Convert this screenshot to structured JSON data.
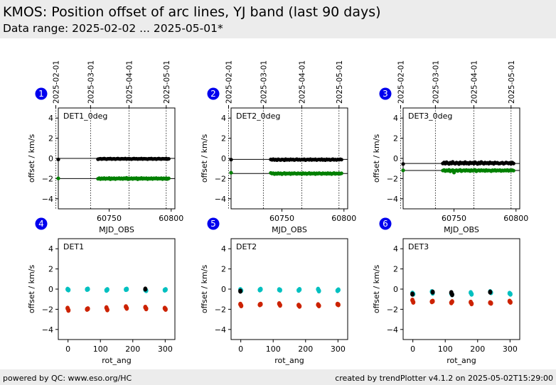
{
  "header": {
    "title": "KMOS: Position offset of arc lines, YJ band (last 90 days)",
    "subtitle": "Data range: 2025-02-02 ... 2025-05-01*"
  },
  "footer": {
    "left": "powered by QC: www.eso.org/HC",
    "right": "created by trendPlotter v4.1.2 on 2025-05-02T15:29:00"
  },
  "colors": {
    "series_black": "#000000",
    "series_green": "#008000",
    "series_cyan": "#00c0c0",
    "series_red": "#cc2200",
    "badge": "#0000ee"
  },
  "chart_data": [
    {
      "type": "scatter",
      "badge": "1",
      "label": "DET1_0deg",
      "xlabel": "MJD_OBS",
      "ylabel": "offset / km/s",
      "xlim": [
        60709,
        60803
      ],
      "ylim": [
        -5,
        5
      ],
      "xticks": [
        60750,
        60800
      ],
      "yticks": [
        4,
        2,
        0,
        -2,
        -4
      ],
      "date_ticks": [
        {
          "mjd": 60707,
          "label": "2025-02-01"
        },
        {
          "mjd": 60735,
          "label": "2025-03-01"
        },
        {
          "mjd": 60766,
          "label": "2025-04-01"
        },
        {
          "mjd": 60796,
          "label": "2025-05-01"
        }
      ],
      "ref_lines": [
        0,
        -2
      ],
      "series": [
        {
          "color": "#000000",
          "x_start": 60709,
          "x_step": 1,
          "values": [
            -0.1,
            null,
            null,
            null,
            null,
            null,
            null,
            null,
            null,
            null,
            null,
            null,
            null,
            null,
            null,
            null,
            null,
            null,
            null,
            null,
            null,
            null,
            null,
            null,
            null,
            null,
            null,
            null,
            null,
            null,
            null,
            null,
            -0.08,
            -0.05,
            -0.03,
            -0.06,
            -0.04,
            -0.02,
            -0.05,
            -0.07,
            -0.03,
            -0.04,
            -0.02,
            -0.06,
            -0.05,
            -0.03,
            -0.07,
            -0.04,
            -0.02,
            -0.05,
            -0.06,
            -0.03,
            -0.04,
            -0.05,
            -0.02,
            -0.06,
            -0.04,
            -0.03,
            -0.05,
            -0.07,
            -0.04,
            -0.02,
            -0.05,
            -0.03,
            -0.06,
            -0.04,
            -0.05,
            -0.02,
            -0.06,
            -0.03,
            -0.04,
            -0.05,
            -0.07,
            -0.03,
            -0.04,
            -0.02,
            -0.06,
            -0.05,
            -0.03,
            -0.07,
            -0.04,
            -0.02,
            -0.05,
            -0.06,
            -0.03,
            -0.04,
            -0.05,
            -0.02,
            -0.06,
            -0.04
          ]
        },
        {
          "color": "#008000",
          "x_start": 60709,
          "x_step": 1,
          "values": [
            -1.98,
            null,
            null,
            null,
            null,
            null,
            null,
            null,
            null,
            null,
            null,
            null,
            null,
            null,
            null,
            null,
            null,
            null,
            null,
            null,
            null,
            null,
            null,
            null,
            null,
            null,
            null,
            null,
            null,
            null,
            null,
            null,
            -2.02,
            -1.96,
            -2.05,
            -1.97,
            -2.03,
            -1.95,
            -2.04,
            -1.98,
            -2.01,
            -1.94,
            -2.06,
            -1.97,
            -2.02,
            -1.96,
            -2.05,
            -1.98,
            -2.0,
            -1.95,
            -2.03,
            -1.97,
            -2.04,
            -1.96,
            -2.01,
            -1.93,
            -2.05,
            -1.98,
            -2.02,
            -1.96,
            -2.04,
            -1.97,
            -2.0,
            -1.95,
            -2.06,
            -1.98,
            -2.02,
            -1.94,
            -2.03,
            -1.97,
            -2.01,
            -1.96,
            -2.05,
            -1.98,
            -2.02,
            -1.96,
            -2.04,
            -1.97,
            -2.0,
            -1.95,
            -2.03,
            -1.98,
            -2.01,
            -1.96,
            -2.05,
            -1.97,
            -2.02,
            -1.96,
            -2.04,
            -1.98
          ]
        }
      ]
    },
    {
      "type": "scatter",
      "badge": "2",
      "label": "DET2_0deg",
      "xlabel": "MJD_OBS",
      "ylabel": "offset / km/s",
      "xlim": [
        60709,
        60803
      ],
      "ylim": [
        -5,
        5
      ],
      "xticks": [
        60750,
        60800
      ],
      "yticks": [
        4,
        2,
        0,
        -2,
        -4
      ],
      "date_ticks": [
        {
          "mjd": 60707,
          "label": "2025-02-01"
        },
        {
          "mjd": 60735,
          "label": "2025-03-01"
        },
        {
          "mjd": 60766,
          "label": "2025-04-01"
        },
        {
          "mjd": 60796,
          "label": "2025-05-01"
        }
      ],
      "ref_lines": [
        -0.1,
        -1.5
      ],
      "series": [
        {
          "color": "#000000",
          "x_start": 60709,
          "x_step": 1,
          "values": [
            -0.12,
            null,
            null,
            null,
            null,
            null,
            null,
            null,
            null,
            null,
            null,
            null,
            null,
            null,
            null,
            null,
            null,
            null,
            null,
            null,
            null,
            null,
            null,
            null,
            null,
            null,
            null,
            null,
            null,
            null,
            null,
            null,
            -0.1,
            -0.14,
            -0.08,
            -0.15,
            -0.11,
            -0.17,
            -0.09,
            -0.13,
            -0.16,
            -0.1,
            -0.12,
            -0.18,
            -0.08,
            -0.14,
            -0.11,
            -0.15,
            -0.09,
            -0.13,
            -0.1,
            -0.16,
            -0.12,
            -0.08,
            -0.14,
            -0.11,
            -0.15,
            -0.1,
            -0.13,
            -0.09,
            -0.17,
            -0.12,
            -0.1,
            -0.14,
            -0.08,
            -0.15,
            -0.11,
            -0.13,
            -0.09,
            -0.16,
            -0.12,
            -0.1,
            -0.14,
            -0.08,
            -0.15,
            -0.11,
            -0.17,
            -0.09,
            -0.13,
            -0.1,
            -0.16,
            -0.12,
            -0.08,
            -0.14,
            -0.11,
            -0.15,
            -0.1,
            -0.13,
            -0.09,
            -0.12
          ]
        },
        {
          "color": "#008000",
          "x_start": 60709,
          "x_step": 1,
          "values": [
            -1.42,
            null,
            null,
            null,
            null,
            null,
            null,
            null,
            null,
            null,
            null,
            null,
            null,
            null,
            null,
            null,
            null,
            null,
            null,
            null,
            null,
            null,
            null,
            null,
            null,
            null,
            null,
            null,
            null,
            null,
            null,
            null,
            -1.44,
            -1.5,
            -1.47,
            -1.55,
            -1.49,
            -1.53,
            -1.46,
            -1.52,
            -1.48,
            -1.56,
            -1.5,
            -1.45,
            -1.54,
            -1.49,
            -1.51,
            -1.47,
            -1.55,
            -1.48,
            -1.52,
            -1.46,
            -1.5,
            -1.53,
            -1.47,
            -1.51,
            -1.49,
            -1.55,
            -1.46,
            -1.52,
            -1.48,
            -1.54,
            -1.5,
            -1.45,
            -1.53,
            -1.49,
            -1.51,
            -1.47,
            -1.55,
            -1.48,
            -1.52,
            -1.46,
            -1.5,
            -1.54,
            -1.47,
            -1.51,
            -1.49,
            -1.53,
            -1.46,
            -1.52,
            -1.48,
            -1.55,
            -1.5,
            -1.45,
            -1.53,
            -1.49,
            -1.51,
            -1.47,
            -1.52,
            -1.48
          ]
        }
      ]
    },
    {
      "type": "scatter",
      "badge": "3",
      "label": "DET3_0deg",
      "xlabel": "MJD_OBS",
      "ylabel": "offset / km/s",
      "xlim": [
        60709,
        60803
      ],
      "ylim": [
        -5,
        5
      ],
      "xticks": [
        60750,
        60800
      ],
      "yticks": [
        4,
        2,
        0,
        -2,
        -4
      ],
      "date_ticks": [
        {
          "mjd": 60707,
          "label": "2025-02-01"
        },
        {
          "mjd": 60735,
          "label": "2025-03-01"
        },
        {
          "mjd": 60766,
          "label": "2025-04-01"
        },
        {
          "mjd": 60796,
          "label": "2025-05-01"
        }
      ],
      "ref_lines": [
        -0.5,
        -1.2
      ],
      "series": [
        {
          "color": "#000000",
          "x_start": 60709,
          "x_step": 1,
          "values": [
            -0.55,
            null,
            null,
            null,
            null,
            null,
            null,
            null,
            null,
            null,
            null,
            null,
            null,
            null,
            null,
            null,
            null,
            null,
            null,
            null,
            null,
            null,
            null,
            null,
            null,
            null,
            null,
            null,
            null,
            null,
            null,
            null,
            -0.5,
            -0.4,
            -0.52,
            -0.38,
            -0.47,
            -0.55,
            -0.42,
            -0.5,
            -0.35,
            -0.48,
            -0.53,
            -0.41,
            -0.46,
            -0.56,
            -0.39,
            -0.49,
            -0.44,
            -0.52,
            -0.37,
            -0.5,
            -0.45,
            -0.54,
            -0.4,
            -0.48,
            -0.43,
            -0.51,
            -0.38,
            -0.47,
            -0.55,
            -0.42,
            -0.5,
            -0.36,
            -0.46,
            -0.53,
            -0.41,
            -0.49,
            -0.44,
            -0.52,
            -0.39,
            -0.48,
            -0.45,
            -0.54,
            -0.4,
            -0.47,
            -0.43,
            -0.51,
            -0.5,
            -0.46,
            -0.42,
            -0.53,
            -0.48,
            -0.4,
            -0.45,
            -0.5,
            -0.44,
            -0.52,
            -0.41,
            -0.5
          ]
        },
        {
          "color": "#008000",
          "x_start": 60709,
          "x_step": 1,
          "values": [
            -1.18,
            null,
            null,
            null,
            null,
            null,
            null,
            null,
            null,
            null,
            null,
            null,
            null,
            null,
            null,
            null,
            null,
            null,
            null,
            null,
            null,
            null,
            null,
            null,
            null,
            null,
            null,
            null,
            null,
            null,
            null,
            null,
            -1.2,
            -1.15,
            -1.25,
            -1.18,
            -1.22,
            -1.13,
            -1.28,
            -1.2,
            -1.16,
            -1.4,
            -1.21,
            -1.17,
            -1.24,
            -1.19,
            -1.14,
            -1.26,
            -1.2,
            -1.17,
            -1.23,
            -1.15,
            -1.21,
            -1.18,
            -1.25,
            -1.16,
            -1.22,
            -1.19,
            -1.14,
            -1.27,
            -1.2,
            -1.17,
            -1.23,
            -1.16,
            -1.21,
            -1.18,
            -1.24,
            -1.15,
            -1.22,
            -1.19,
            -1.2,
            -1.26,
            -1.17,
            -1.21,
            -1.15,
            -1.23,
            -1.18,
            -1.2,
            -1.16,
            -1.24,
            -1.19,
            -1.22,
            -1.17,
            -1.21,
            -1.15,
            -1.23,
            -1.18,
            -1.2,
            -1.17,
            -1.21
          ]
        }
      ]
    },
    {
      "type": "scatter",
      "badge": "4",
      "label": "DET1",
      "xlabel": "rot_ang",
      "ylabel": "offset / km/s",
      "xlim": [
        -30,
        330
      ],
      "ylim": [
        -5,
        5
      ],
      "xticks": [
        0,
        100,
        200,
        300
      ],
      "yticks": [
        4,
        2,
        0,
        -2,
        -4
      ],
      "ref_lines": [],
      "series": [
        {
          "color": "#00c0c0",
          "x": [
            0,
            0,
            60,
            60,
            120,
            120,
            180,
            180,
            240,
            240,
            300,
            300
          ],
          "values": [
            -0.02,
            -0.08,
            -0.03,
            0.0,
            -0.12,
            -0.05,
            -0.04,
            -0.01,
            -0.08,
            -0.15,
            -0.1,
            -0.05
          ]
        },
        {
          "color": "#cc2200",
          "x": [
            0,
            0,
            60,
            60,
            120,
            120,
            180,
            180,
            240,
            240,
            300,
            300
          ],
          "values": [
            -1.9,
            -2.1,
            -2.0,
            -1.95,
            -1.85,
            -2.05,
            -1.75,
            -1.9,
            -1.8,
            -1.95,
            -1.9,
            -2.0
          ]
        },
        {
          "color": "#000000",
          "x": [
            240
          ],
          "values": [
            0.0
          ]
        }
      ]
    },
    {
      "type": "scatter",
      "badge": "5",
      "label": "DET2",
      "xlabel": "rot_ang",
      "ylabel": "offset / km/s",
      "xlim": [
        -30,
        330
      ],
      "ylim": [
        -5,
        5
      ],
      "xticks": [
        0,
        100,
        200,
        300
      ],
      "yticks": [
        4,
        2,
        0,
        -2,
        -4
      ],
      "ref_lines": [],
      "series": [
        {
          "color": "#00c0c0",
          "x": [
            0,
            0,
            60,
            60,
            120,
            120,
            180,
            180,
            240,
            240,
            300,
            300
          ],
          "values": [
            -0.05,
            -0.15,
            -0.08,
            -0.02,
            -0.06,
            -0.1,
            -0.12,
            -0.04,
            -0.02,
            -0.18,
            -0.15,
            -0.08
          ]
        },
        {
          "color": "#cc2200",
          "x": [
            0,
            0,
            60,
            60,
            120,
            120,
            180,
            180,
            240,
            240,
            300,
            300
          ],
          "values": [
            -1.5,
            -1.65,
            -1.55,
            -1.5,
            -1.45,
            -1.6,
            -1.6,
            -1.7,
            -1.55,
            -1.65,
            -1.5,
            -1.55
          ]
        },
        {
          "color": "#000000",
          "x": [
            0
          ],
          "values": [
            -0.2
          ]
        }
      ]
    },
    {
      "type": "scatter",
      "badge": "6",
      "label": "DET3",
      "xlabel": "rot_ang",
      "ylabel": "offset / km/s",
      "xlim": [
        -30,
        330
      ],
      "ylim": [
        -5,
        5
      ],
      "xticks": [
        0,
        100,
        200,
        300
      ],
      "yticks": [
        4,
        2,
        0,
        -2,
        -4
      ],
      "ref_lines": [],
      "series": [
        {
          "color": "#00c0c0",
          "x": [
            0,
            0,
            60,
            60,
            120,
            120,
            180,
            180,
            240,
            240,
            300,
            300
          ],
          "values": [
            -0.4,
            -0.5,
            -0.25,
            -0.4,
            -0.45,
            -0.55,
            -0.35,
            -0.5,
            -0.25,
            -0.35,
            -0.42,
            -0.5
          ]
        },
        {
          "color": "#cc2200",
          "x": [
            0,
            0,
            60,
            60,
            120,
            120,
            180,
            180,
            240,
            240,
            300,
            300
          ],
          "values": [
            -1.1,
            -1.3,
            -1.25,
            -1.2,
            -1.35,
            -1.25,
            -1.3,
            -1.45,
            -1.35,
            -1.4,
            -1.2,
            -1.3
          ]
        },
        {
          "color": "#000000",
          "x": [
            0,
            60,
            120,
            120,
            240
          ],
          "values": [
            -0.5,
            -0.3,
            -0.35,
            -0.55,
            -0.3
          ]
        }
      ]
    }
  ]
}
